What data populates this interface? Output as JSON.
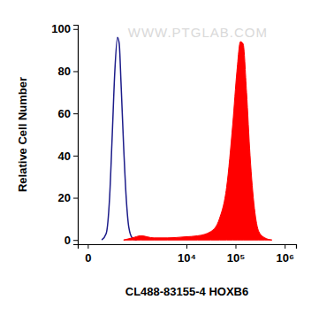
{
  "chart_data": {
    "type": "line",
    "x_label": "CL488-83155-4 HOXB6",
    "y_label": "Relative Cell Number",
    "annotations": [
      "WWW.PTGLAB.COM"
    ],
    "log": "x",
    "xlim": [
      -60,
      1700000
    ],
    "xticks": [
      0,
      {
        "value": 10000,
        "label": "10⁴"
      },
      {
        "value": 100000,
        "label": "10⁵"
      },
      {
        "value": 1000000,
        "label": "10⁶"
      }
    ],
    "ylim": [
      -2,
      102
    ],
    "yticks": [
      0,
      20,
      40,
      60,
      80,
      100
    ],
    "series": [
      {
        "type": "line",
        "color": "#1c1c8a",
        "x": [
          92,
          136,
          177,
          214,
          254,
          301,
          335,
          372,
          433,
          503,
          581,
          700,
          883
        ],
        "values": [
          0,
          3,
          20,
          50,
          80,
          96,
          93,
          75,
          45,
          20,
          6,
          1,
          0
        ]
      },
      {
        "type": "area",
        "color": "#ff0000",
        "x": [
          433,
          700,
          1100,
          2100,
          4000,
          9200,
          17000,
          31500,
          47000,
          66000,
          88000,
          107000,
          126000,
          143000,
          168000,
          198000,
          243000,
          298000,
          397000,
          550000
        ],
        "values": [
          0,
          1,
          2,
          1,
          1,
          1.5,
          2,
          4,
          10,
          25,
          55,
          80,
          94,
          93,
          70,
          40,
          15,
          4,
          1,
          0
        ]
      }
    ]
  }
}
